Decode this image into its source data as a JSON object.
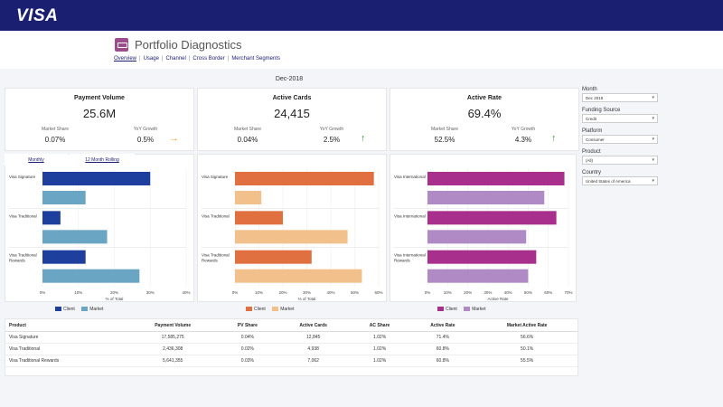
{
  "brand": {
    "logo": "VISA"
  },
  "page": {
    "title": "Portfolio Diagnostics",
    "tabs": [
      "Overview",
      "Usage",
      "Channel",
      "Cross Border",
      "Merchant Segments"
    ],
    "date": "Dec-2018"
  },
  "kpis": [
    {
      "title": "Payment Volume",
      "value": "25.6M",
      "sub1_label": "Market Share",
      "sub1_value": "0.07%",
      "sub2_label": "YoY Growth",
      "sub2_value": "0.5%",
      "arrow": "→",
      "arrow_color": "#f0a030"
    },
    {
      "title": "Active Cards",
      "value": "24,415",
      "sub1_label": "Market Share",
      "sub1_value": "0.04%",
      "sub2_label": "YoY Growth",
      "sub2_value": "2.5%",
      "arrow": "↑",
      "arrow_color": "#4a9a4a"
    },
    {
      "title": "Active Rate",
      "value": "69.4%",
      "sub1_label": "Market Share",
      "sub1_value": "52.5%",
      "sub2_label": "YoY Growth",
      "sub2_value": "4.3%",
      "arrow": "↑",
      "arrow_color": "#4a9a4a"
    }
  ],
  "chart_tabs": [
    "Monthly",
    "12 Month Rolling"
  ],
  "chart_data": [
    {
      "type": "bar",
      "categories": [
        "Visa Signature",
        "Visa Traditional",
        "Visa Traditional Rewards"
      ],
      "series": [
        {
          "name": "Client",
          "values": [
            30,
            5,
            12
          ],
          "color": "#1f3f9e"
        },
        {
          "name": "Market",
          "values": [
            12,
            18,
            27
          ],
          "color": "#6aa6c4"
        }
      ],
      "xlabel": "% of Total",
      "ticks": [
        "0%",
        "10%",
        "20%",
        "30%",
        "40%"
      ],
      "xlim": [
        0,
        40
      ]
    },
    {
      "type": "bar",
      "categories": [
        "Visa Signature",
        "Visa Traditional",
        "Visa Traditional Rewards"
      ],
      "series": [
        {
          "name": "Client",
          "values": [
            58,
            20,
            32
          ],
          "color": "#e07040"
        },
        {
          "name": "Market",
          "values": [
            11,
            47,
            53
          ],
          "color": "#f2c08a"
        }
      ],
      "xlabel": "% of Total",
      "ticks": [
        "0%",
        "10%",
        "20%",
        "30%",
        "40%",
        "50%",
        "60%"
      ],
      "xlim": [
        0,
        60
      ]
    },
    {
      "type": "bar",
      "categories": [
        "Visa International",
        "Visa International",
        "Visa International Rewards"
      ],
      "series": [
        {
          "name": "Client",
          "values": [
            68,
            64,
            54
          ],
          "color": "#a8308c"
        },
        {
          "name": "Market",
          "values": [
            58,
            49,
            50
          ],
          "color": "#b08ac4"
        }
      ],
      "xlabel": "Active Rate",
      "ticks": [
        "0%",
        "10%",
        "20%",
        "30%",
        "40%",
        "50%",
        "60%",
        "70%"
      ],
      "xlim": [
        0,
        70
      ]
    }
  ],
  "table": {
    "headers": [
      "Product",
      "Payment Volume",
      "PV Share",
      "Active Cards",
      "AC Share",
      "Active Rate",
      "Market Active Rate"
    ],
    "rows": [
      [
        "Visa Signature",
        "17,585,275",
        "0.04%",
        "12,845",
        "1.02%",
        "71.4%",
        "56.6%"
      ],
      [
        "Visa Traditional",
        "2,436,308",
        "0.02%",
        "4,938",
        "1.02%",
        "60.8%",
        "50.1%"
      ],
      [
        "Visa Traditional Rewards",
        "5,641,355",
        "0.03%",
        "7,062",
        "1.02%",
        "60.8%",
        "55.5%"
      ]
    ]
  },
  "filters": [
    {
      "label": "Month",
      "value": "Dec 2018"
    },
    {
      "label": "Funding Source",
      "value": "Credit"
    },
    {
      "label": "Platform",
      "value": "Consumer"
    },
    {
      "label": "Product",
      "value": "(All)"
    },
    {
      "label": "Country",
      "value": "United States of America"
    }
  ]
}
